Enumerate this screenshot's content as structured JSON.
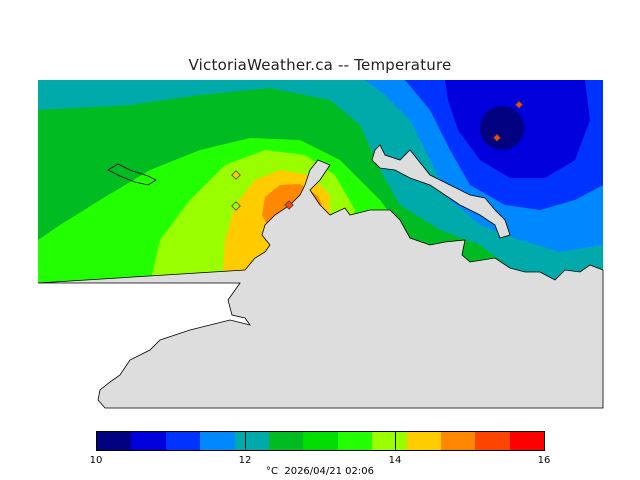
{
  "title": "VictoriaWeather.ca -- Temperature",
  "legend": {
    "min": 10,
    "max": 16,
    "ticks": [
      "10",
      "12",
      "14",
      "16"
    ],
    "colors": [
      "#000080",
      "#0000dd",
      "#0033ff",
      "#0088ff",
      "#00aaaa",
      "#00bb22",
      "#00dd00",
      "#22ff00",
      "#99ff00",
      "#ffcc00",
      "#ff8800",
      "#ff4400",
      "#ff0000"
    ]
  },
  "footer": {
    "unit": "°C",
    "timestamp": "2026/04/21 02:06"
  },
  "palette": {
    "land": "#dddddd",
    "dark_navy": "#000080",
    "blue": "#0000dd",
    "mid_blue": "#0033ff",
    "light_blue": "#0088ff",
    "teal": "#00aaaa",
    "green": "#00bb22",
    "bright_green": "#22ff00",
    "lime": "#99ff00",
    "yellow": "#ffcc00",
    "orange": "#ff8800"
  }
}
